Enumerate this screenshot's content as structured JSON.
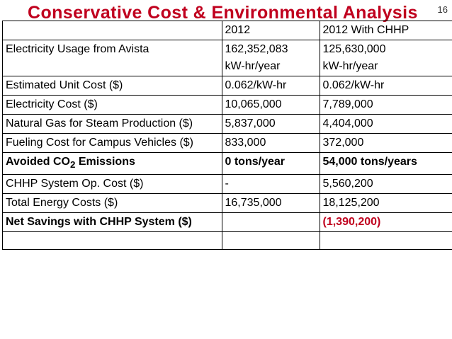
{
  "slide": {
    "title": "Conservative Cost & Environmental Analysis",
    "page_number": "16",
    "accent_color": "#c0001e",
    "title_color": "#c0001e"
  },
  "table": {
    "headers": [
      "",
      "2012",
      "2012 With CHHP"
    ],
    "rows": [
      {
        "label": "Electricity Usage from Avista",
        "v2012": "162,352,083",
        "v2012_unit": "kW-hr/year",
        "vchhp": "125,630,000",
        "vchhp_unit": "kW-hr/year"
      },
      {
        "label": "Estimated Unit Cost ($)",
        "v2012": "0.062/kW-hr",
        "vchhp": "0.062/kW-hr"
      },
      {
        "label": "Electricity Cost ($)",
        "v2012": "10,065,000",
        "vchhp": "7,789,000"
      },
      {
        "label": "Natural Gas for Steam Production ($)",
        "v2012": "5,837,000",
        "vchhp": "4,404,000"
      },
      {
        "label": "Fueling Cost for Campus Vehicles ($)",
        "v2012": "833,000",
        "vchhp": "372,000"
      },
      {
        "label_prefix": "Avoided CO",
        "label_sub": "2",
        "label_suffix": " Emissions",
        "v2012": "0 tons/year",
        "vchhp": "54,000 tons/years"
      },
      {
        "label": "CHHP System Op. Cost ($)",
        "v2012": "-",
        "vchhp": "5,560,200"
      },
      {
        "label": "Total Energy Costs ($)",
        "v2012": "16,735,000",
        "vchhp": "18,125,200"
      },
      {
        "label": "Net Savings with CHHP System ($)",
        "v2012": "",
        "vchhp": "(1,390,200)"
      }
    ]
  }
}
